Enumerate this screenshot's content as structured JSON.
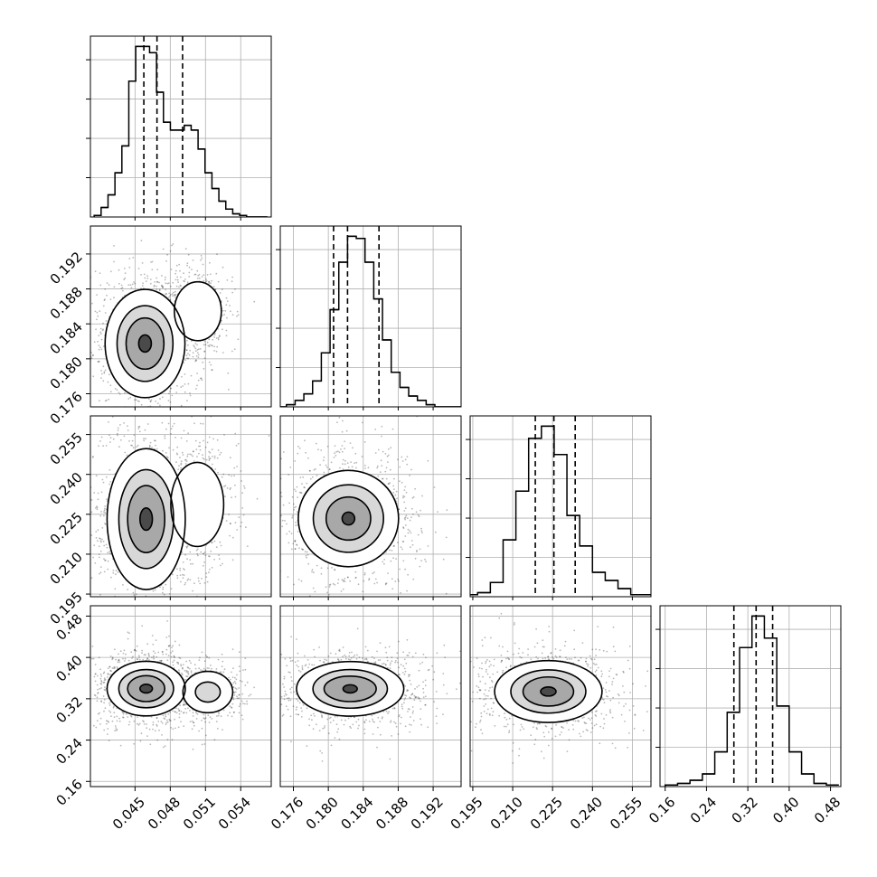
{
  "chart_data": {
    "type": "corner",
    "grid": true,
    "parameters": [
      {
        "ticks": [
          0.045,
          0.048,
          0.051,
          0.054
        ],
        "tick_labels": [
          "0.045",
          "0.048",
          "0.051",
          "0.054"
        ]
      },
      {
        "ticks": [
          0.176,
          0.18,
          0.184,
          0.188,
          0.192
        ],
        "tick_labels": [
          "0.176",
          "0.180",
          "0.184",
          "0.188",
          "0.192"
        ]
      },
      {
        "ticks": [
          0.195,
          0.21,
          0.225,
          0.24,
          0.255
        ],
        "tick_labels": [
          "0.195",
          "0.210",
          "0.225",
          "0.240",
          "0.255"
        ]
      },
      {
        "ticks": [
          0.16,
          0.24,
          0.32,
          0.4,
          0.48
        ],
        "tick_labels": [
          "0.16",
          "0.24",
          "0.32",
          "0.40",
          "0.48"
        ]
      }
    ],
    "marginals": [
      {
        "bin_edges": [
          0.04152,
          0.04211,
          0.0427,
          0.04329,
          0.04388,
          0.04447,
          0.04506,
          0.04565,
          0.04624,
          0.04683,
          0.04742,
          0.04801,
          0.0486,
          0.04919,
          0.04978,
          0.05037,
          0.05096,
          0.05155,
          0.05214,
          0.05273,
          0.05332,
          0.05391,
          0.0545,
          0.05509,
          0.05568,
          0.05627
        ],
        "counts": [
          1,
          6,
          14,
          28,
          45,
          86,
          108,
          108,
          104,
          79,
          60,
          55,
          55,
          58,
          55,
          43,
          28,
          18,
          10,
          5,
          2,
          1,
          0,
          0,
          0
        ],
        "quantiles": [
          0.04575,
          0.04687,
          0.04905
        ]
      },
      {
        "bin_edges": [
          0.1742,
          0.1752,
          0.1762,
          0.1772,
          0.1782,
          0.1792,
          0.1802,
          0.1812,
          0.1822,
          0.1832,
          0.1842,
          0.1852,
          0.1862,
          0.1872,
          0.1882,
          0.1892,
          0.1902,
          0.1912,
          0.1922,
          0.1932,
          0.1942,
          0.1952
        ],
        "counts": [
          0,
          1,
          3,
          6,
          12,
          25,
          45,
          67,
          79,
          78,
          67,
          50,
          31,
          16,
          9,
          5,
          3,
          1,
          0,
          0,
          0
        ],
        "quantiles": [
          0.1806,
          0.1822,
          0.1858
        ]
      },
      {
        "bin_edges": [
          0.192,
          0.1968,
          0.2016,
          0.2064,
          0.2112,
          0.216,
          0.2208,
          0.2256,
          0.2304,
          0.2352,
          0.24,
          0.2448,
          0.2496,
          0.2544,
          0.2592,
          0.264
        ],
        "counts": [
          1,
          2,
          7,
          28,
          52,
          78,
          84,
          70,
          40,
          25,
          12,
          8,
          4,
          1,
          1
        ],
        "quantiles": [
          0.2185,
          0.2255,
          0.2335
        ]
      },
      {
        "bin_edges": [
          0.16,
          0.184,
          0.208,
          0.232,
          0.256,
          0.28,
          0.304,
          0.328,
          0.352,
          0.376,
          0.4,
          0.424,
          0.448,
          0.472,
          0.496
        ],
        "counts": [
          1,
          2,
          4,
          8,
          22,
          47,
          88,
          108,
          94,
          51,
          22,
          8,
          2,
          1
        ],
        "quantiles": [
          0.293,
          0.336,
          0.368
        ]
      }
    ],
    "joint": [
      {
        "x_param": 0,
        "y_param": 1,
        "modes": [
          {
            "cx": 0.04585,
            "cy": 0.18175,
            "contours": [
              [
                0.0034,
                0.0062
              ],
              [
                0.00238,
                0.00434
              ],
              [
                0.00161,
                0.00293
              ],
              [
                0.00054,
                0.00098
              ]
            ]
          },
          {
            "cx": 0.05035,
            "cy": 0.18545,
            "contours": [
              [
                0.002,
                0.00337
              ]
            ]
          }
        ]
      },
      {
        "x_param": 0,
        "y_param": 2,
        "modes": [
          {
            "cx": 0.04595,
            "cy": 0.2232,
            "contours": [
              [
                0.00333,
                0.0265
              ],
              [
                0.00233,
                0.0186
              ],
              [
                0.00158,
                0.0126
              ],
              [
                0.00053,
                0.0042
              ]
            ]
          },
          {
            "cx": 0.0503,
            "cy": 0.2287,
            "contours": [
              [
                0.00225,
                0.0158
              ]
            ]
          }
        ]
      },
      {
        "x_param": 1,
        "y_param": 2,
        "modes": [
          {
            "cx": 0.1823,
            "cy": 0.2234,
            "contours": [
              [
                0.00574,
                0.0181
              ],
              [
                0.00402,
                0.0127
              ],
              [
                0.00255,
                0.0081
              ],
              [
                0.00072,
                0.0024
              ]
            ]
          }
        ]
      },
      {
        "x_param": 0,
        "y_param": 3,
        "modes": [
          {
            "cx": 0.04595,
            "cy": 0.3396,
            "contours": [
              [
                0.00333,
                0.0528
              ],
              [
                0.00233,
                0.037
              ],
              [
                0.00158,
                0.0251
              ],
              [
                0.00053,
                0.0084
              ]
            ]
          },
          {
            "cx": 0.0512,
            "cy": 0.333,
            "contours": [
              [
                0.00212,
                0.04
              ],
              [
                0.00106,
                0.0194
              ]
            ]
          }
        ]
      },
      {
        "x_param": 1,
        "y_param": 3,
        "modes": [
          {
            "cx": 0.1825,
            "cy": 0.3392,
            "contours": [
              [
                0.00614,
                0.0528
              ],
              [
                0.00426,
                0.0374
              ],
              [
                0.00298,
                0.0247
              ],
              [
                0.00081,
                0.0079
              ]
            ]
          }
        ]
      },
      {
        "x_param": 2,
        "y_param": 3,
        "modes": [
          {
            "cx": 0.2234,
            "cy": 0.334,
            "contours": [
              [
                0.0202,
                0.0598
              ],
              [
                0.0141,
                0.0418
              ],
              [
                0.0095,
                0.0282
              ],
              [
                0.0029,
                0.0088
              ]
            ]
          }
        ]
      }
    ]
  }
}
